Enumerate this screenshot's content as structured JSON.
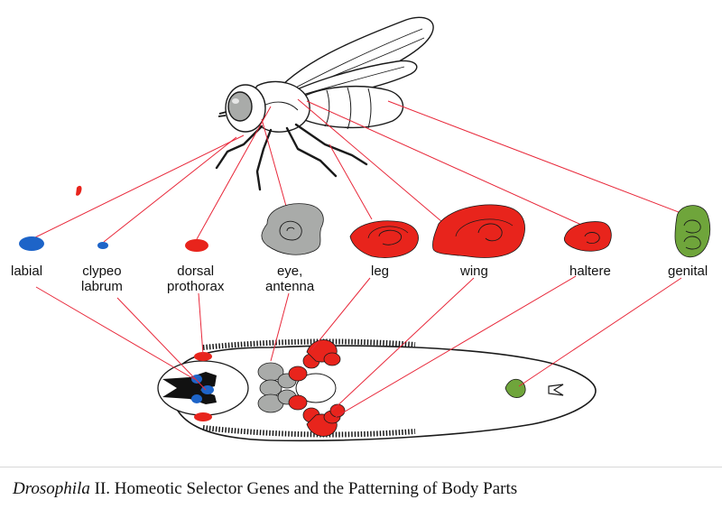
{
  "labels": {
    "labial": "labial",
    "clypeo_line1": "clypeo",
    "clypeo_line2": "labrum",
    "dorsal_line1": "dorsal",
    "dorsal_line2": "prothorax",
    "eye_line1": "eye,",
    "eye_line2": "antenna",
    "leg": "leg",
    "wing": "wing",
    "haltere": "haltere",
    "genital": "genital"
  },
  "caption": {
    "italic": "Drosophila",
    "rest": " II. Homeotic Selector Genes and the Patterning of Body Parts"
  },
  "colors": {
    "connector": "#e8283a",
    "blue": "#1d64c8",
    "red": "#e8241c",
    "gray": "#a9aba9",
    "green": "#6fa53b",
    "outline": "#1a1a1a"
  }
}
